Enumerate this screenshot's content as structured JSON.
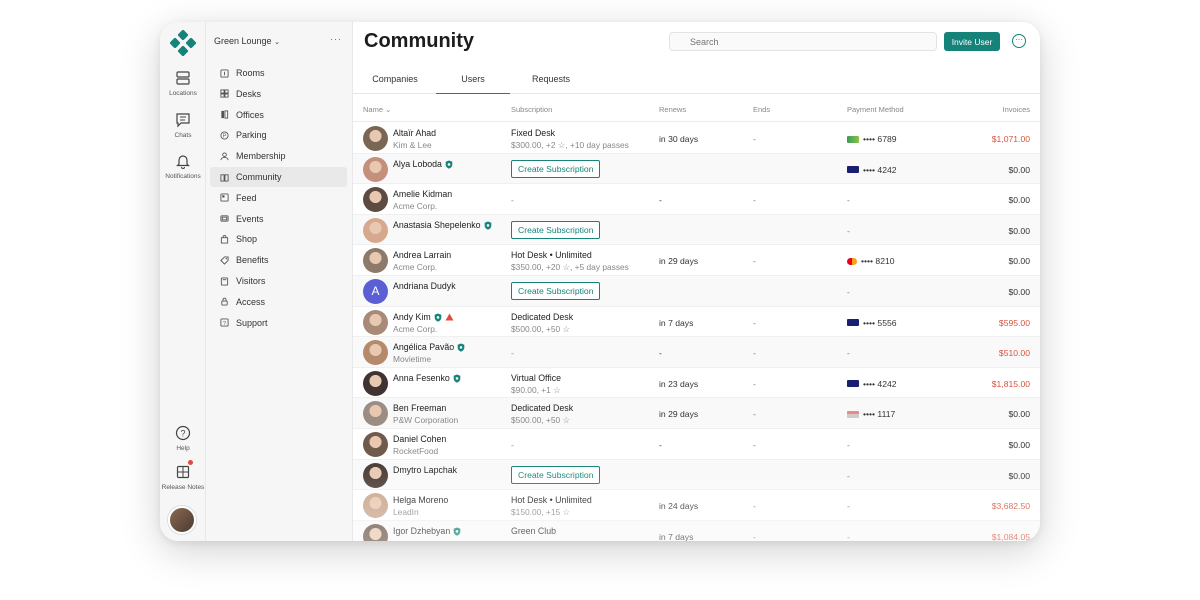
{
  "rail": {
    "locations": "Locations",
    "chats": "Chats",
    "notifications": "Notifications",
    "help": "Help",
    "release_notes": "Release Notes"
  },
  "nav": {
    "workspace": "Green Lounge",
    "more": "···",
    "items": [
      {
        "label": "Rooms",
        "icon": "rooms-icon"
      },
      {
        "label": "Desks",
        "icon": "desks-icon"
      },
      {
        "label": "Offices",
        "icon": "offices-icon"
      },
      {
        "label": "Parking",
        "icon": "parking-icon"
      },
      {
        "label": "Membership",
        "icon": "membership-icon"
      },
      {
        "label": "Community",
        "icon": "community-icon",
        "active": true
      },
      {
        "label": "Feed",
        "icon": "feed-icon"
      },
      {
        "label": "Events",
        "icon": "events-icon"
      },
      {
        "label": "Shop",
        "icon": "shop-icon"
      },
      {
        "label": "Benefits",
        "icon": "benefits-icon"
      },
      {
        "label": "Visitors",
        "icon": "visitors-icon"
      },
      {
        "label": "Access",
        "icon": "access-icon"
      },
      {
        "label": "Support",
        "icon": "support-icon"
      }
    ]
  },
  "header": {
    "title": "Community",
    "search_placeholder": "Search",
    "invite_label": "Invite User",
    "more_label": "···"
  },
  "tabs": [
    {
      "label": "Companies"
    },
    {
      "label": "Users",
      "active": true
    },
    {
      "label": "Requests"
    }
  ],
  "columns": {
    "name": "Name ⌄",
    "subscription": "Subscription",
    "renews": "Renews",
    "ends": "Ends",
    "payment": "Payment Method",
    "invoices": "Invoices"
  },
  "create_label": "Create Subscription",
  "colors": {
    "accent": "#15837a",
    "due": "#d8533d"
  },
  "rows": [
    {
      "name": "Altaïr Ahad",
      "company": "Kim & Lee",
      "sub": "Fixed Desk",
      "sub_detail": "$300.00, +2 ☆, +10 day passes",
      "renews": "in 30 days",
      "ends": "-",
      "card": "generic",
      "card_num": "•••• 6789",
      "invoice": "$1,071.00",
      "due": true
    },
    {
      "name": "Alya Loboda",
      "company": "",
      "badge": "shield",
      "create": true,
      "renews": "",
      "ends": "",
      "card": "visa",
      "card_num": "•••• 4242",
      "invoice": "$0.00"
    },
    {
      "name": "Amelie Kidman",
      "company": "Acme Corp.",
      "sub_dash": "-",
      "renews": "-",
      "ends": "-",
      "pay_dash": "-",
      "invoice": "$0.00"
    },
    {
      "name": "Anastasia Shepelenko",
      "company": "",
      "badge": "shield",
      "create": true,
      "renews": "",
      "ends": "",
      "pay_dash": "-",
      "invoice": "$0.00"
    },
    {
      "name": "Andrea Larrain",
      "company": "Acme Corp.",
      "sub": "Hot Desk • Unlimited",
      "sub_detail": "$350.00, +20 ☆, +5 day passes",
      "renews": "in 29 days",
      "ends": "-",
      "card": "mastercard",
      "card_num": "•••• 8210",
      "invoice": "$0.00"
    },
    {
      "name": "Andriana Dudyk",
      "company": "",
      "letter": "A",
      "create": true,
      "renews": "",
      "ends": "",
      "pay_dash": "-",
      "invoice": "$0.00"
    },
    {
      "name": "Andy Kim",
      "company": "Acme Corp.",
      "badge": "shield",
      "warn": true,
      "sub": "Dedicated Desk",
      "sub_detail": "$500.00, +50 ☆",
      "renews": "in 7 days",
      "ends": "-",
      "card": "visa",
      "card_num": "•••• 5556",
      "invoice": "$595.00",
      "due": true
    },
    {
      "name": "Angélica Pavão",
      "company": "Movietime",
      "badge": "shield",
      "sub_dash": "-",
      "renews": "-",
      "ends": "-",
      "pay_dash": "-",
      "invoice": "$510.00",
      "due": true
    },
    {
      "name": "Anna Fesenko",
      "company": "",
      "badge": "shield",
      "sub": "Virtual Office",
      "sub_detail": "$90.00, +1 ☆",
      "renews": "in 23 days",
      "ends": "-",
      "card": "visa",
      "card_num": "•••• 4242",
      "invoice": "$1,815.00",
      "due": true
    },
    {
      "name": "Ben Freeman",
      "company": "P&W Corporation",
      "sub": "Dedicated Desk",
      "sub_detail": "$500.00, +50 ☆",
      "renews": "in 29 days",
      "ends": "-",
      "card": "generic2",
      "card_num": "•••• 1117",
      "invoice": "$0.00"
    },
    {
      "name": "Daniel Cohen",
      "company": "RocketFood",
      "sub_dash": "-",
      "renews": "-",
      "ends": "-",
      "pay_dash": "-",
      "invoice": "$0.00"
    },
    {
      "name": "Dmytro Lapchak",
      "company": "",
      "create": true,
      "renews": "",
      "ends": "",
      "pay_dash": "-",
      "invoice": "$0.00"
    },
    {
      "name": "Helga Moreno",
      "company": "LeadIn",
      "sub": "Hot Desk • Unlimited",
      "sub_detail": "$150.00, +15 ☆",
      "renews": "in 24 days",
      "ends": "-",
      "pay_dash": "-",
      "invoice": "$3,682.50",
      "due": true
    },
    {
      "name": "Igor Dzhebyan",
      "company": "",
      "badge": "shield",
      "sub": "Green Club",
      "sub_detail": "",
      "renews": "in 7 days",
      "ends": "-",
      "pay_dash": "-",
      "invoice": "$1,084.05",
      "due": true
    }
  ]
}
